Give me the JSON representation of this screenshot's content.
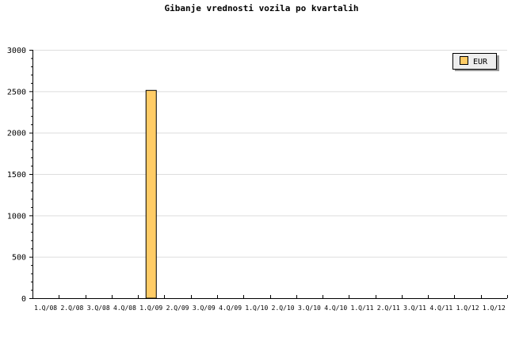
{
  "chart_data": {
    "type": "bar",
    "title": "Gibanje vrednosti vozila po kvartalih",
    "xlabel": "",
    "ylabel": "",
    "categories": [
      "1.Q/08",
      "2.Q/08",
      "3.Q/08",
      "4.Q/08",
      "1.Q/09",
      "2.Q/09",
      "3.Q/09",
      "4.Q/09",
      "1.Q/10",
      "2.Q/10",
      "3.Q/10",
      "4.Q/10",
      "1.Q/11",
      "2.Q/11",
      "3.Q/11",
      "4.Q/11",
      "1.Q/12",
      "1.Q/12"
    ],
    "series": [
      {
        "name": "EUR",
        "values": [
          0,
          0,
          0,
          0,
          2510,
          0,
          0,
          0,
          0,
          0,
          0,
          0,
          0,
          0,
          0,
          0,
          0,
          0
        ],
        "color": "#ffcc66"
      }
    ],
    "ylim": [
      0,
      3000
    ],
    "yticks": [
      0,
      500,
      1000,
      1500,
      2000,
      2500,
      3000
    ],
    "grid": true,
    "legend": "top-right"
  }
}
